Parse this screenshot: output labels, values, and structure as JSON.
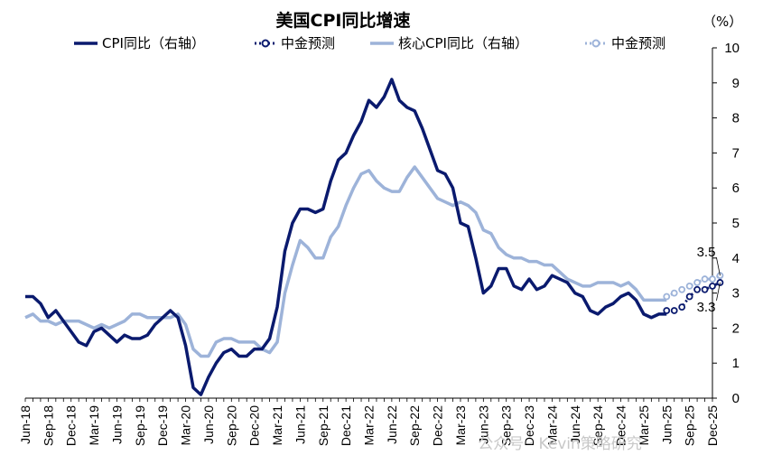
{
  "chart_data": {
    "type": "line",
    "title": "美国CPI同比增速",
    "unit": "（%）",
    "ylim": [
      0,
      10
    ],
    "yticks": [
      0,
      1,
      2,
      3,
      4,
      5,
      6,
      7,
      8,
      9,
      10
    ],
    "y_axis_side": "right",
    "grid": false,
    "legend_position": "top",
    "x_tick_labels": [
      "Jun-18",
      "Sep-18",
      "Dec-18",
      "Mar-19",
      "Jun-19",
      "Sep-19",
      "Dec-19",
      "Mar-20",
      "Jun-20",
      "Sep-20",
      "Dec-20",
      "Mar-21",
      "Jun-21",
      "Sep-21",
      "Dec-21",
      "Mar-22",
      "Jun-22",
      "Sep-22",
      "Dec-22",
      "Mar-23",
      "Jun-23",
      "Sep-23",
      "Dec-23",
      "Mar-24",
      "Jun-24",
      "Sep-24",
      "Dec-24",
      "Mar-25",
      "Jun-25",
      "Sep-25",
      "Dec-25"
    ],
    "series": [
      {
        "name": "CPI同比（右轴）",
        "color": "#0a1a6e",
        "style": "solid",
        "start": "Jun-18",
        "values": [
          2.9,
          2.9,
          2.7,
          2.3,
          2.5,
          2.2,
          1.9,
          1.6,
          1.5,
          1.9,
          2.0,
          1.8,
          1.6,
          1.8,
          1.7,
          1.7,
          1.8,
          2.1,
          2.3,
          2.5,
          2.3,
          1.5,
          0.3,
          0.1,
          0.6,
          1.0,
          1.3,
          1.4,
          1.2,
          1.2,
          1.4,
          1.4,
          1.7,
          2.6,
          4.2,
          5.0,
          5.4,
          5.4,
          5.3,
          5.4,
          6.2,
          6.8,
          7.0,
          7.5,
          7.9,
          8.5,
          8.3,
          8.6,
          9.1,
          8.5,
          8.3,
          8.2,
          7.7,
          7.1,
          6.5,
          6.4,
          6.0,
          5.0,
          4.9,
          4.0,
          3.0,
          3.2,
          3.7,
          3.7,
          3.2,
          3.1,
          3.4,
          3.1,
          3.2,
          3.5,
          3.4,
          3.3,
          3.0,
          2.9,
          2.5,
          2.4,
          2.6,
          2.7,
          2.9,
          3.0,
          2.8,
          2.4,
          2.3,
          2.4,
          2.4
        ]
      },
      {
        "name": "中金预测",
        "color": "#0a1a6e",
        "style": "dotted-markers",
        "start": "Jun-25",
        "values": [
          2.5,
          2.5,
          2.6,
          2.9,
          3.1,
          3.1,
          3.2,
          3.3
        ]
      },
      {
        "name": "核心CPI同比（右轴）",
        "color": "#9db3d9",
        "style": "solid",
        "start": "Jun-18",
        "values": [
          2.3,
          2.4,
          2.2,
          2.2,
          2.1,
          2.2,
          2.2,
          2.2,
          2.1,
          2.0,
          2.1,
          2.0,
          2.1,
          2.2,
          2.4,
          2.4,
          2.3,
          2.3,
          2.3,
          2.3,
          2.4,
          2.1,
          1.4,
          1.2,
          1.2,
          1.6,
          1.7,
          1.7,
          1.6,
          1.6,
          1.6,
          1.4,
          1.3,
          1.6,
          3.0,
          3.8,
          4.5,
          4.3,
          4.0,
          4.0,
          4.6,
          4.9,
          5.5,
          6.0,
          6.4,
          6.5,
          6.2,
          6.0,
          5.9,
          5.9,
          6.3,
          6.6,
          6.3,
          6.0,
          5.7,
          5.6,
          5.5,
          5.6,
          5.5,
          5.3,
          4.8,
          4.7,
          4.3,
          4.1,
          4.0,
          4.0,
          3.9,
          3.9,
          3.8,
          3.8,
          3.6,
          3.4,
          3.3,
          3.2,
          3.2,
          3.3,
          3.3,
          3.3,
          3.2,
          3.3,
          3.1,
          2.8,
          2.8,
          2.8,
          2.8
        ]
      },
      {
        "name": "中金预测",
        "color": "#9db3d9",
        "style": "dotted-markers",
        "start": "Jun-25",
        "values": [
          2.9,
          3.0,
          3.1,
          3.2,
          3.3,
          3.4,
          3.4,
          3.5
        ]
      }
    ],
    "annotations": [
      {
        "text": "3.5",
        "target_series": 3,
        "target_index": "last",
        "placement": "above"
      },
      {
        "text": "3.3",
        "target_series": 1,
        "target_index": "last",
        "placement": "below"
      }
    ]
  },
  "watermark": "公众号 · Kevin策略研究"
}
